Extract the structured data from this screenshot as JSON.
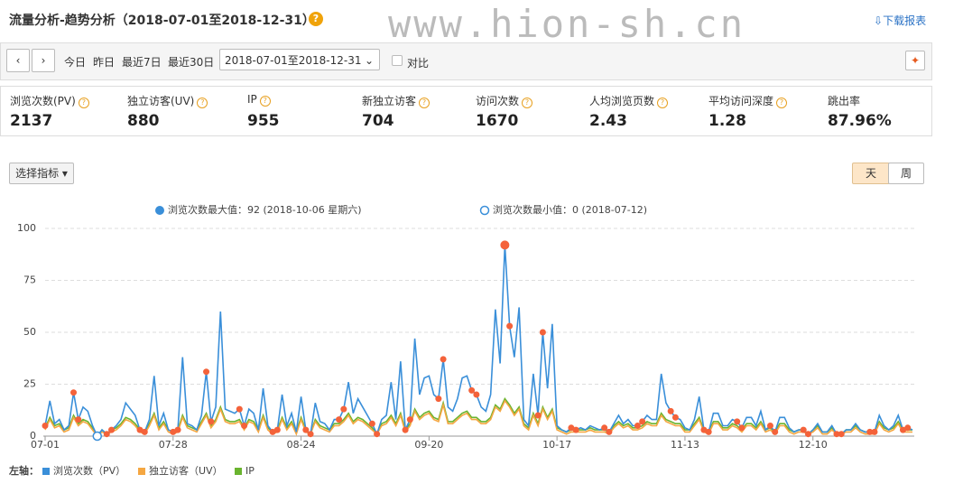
{
  "header": {
    "title": "流量分析-趋势分析（2018-07-01至2018-12-31）",
    "help": "?",
    "watermark": "www.hion-sh.cn",
    "download": "下载报表"
  },
  "toolbar": {
    "ranges": [
      "今日",
      "昨日",
      "最近7日",
      "最近30日"
    ],
    "date_range": "2018-07-01至2018-12-31",
    "compare": "对比"
  },
  "metrics": [
    {
      "label": "浏览次数(PV)",
      "value": 2137
    },
    {
      "label": "独立访客(UV)",
      "value": 880
    },
    {
      "label": "IP",
      "value": 955
    },
    {
      "label": "新独立访客",
      "value": 704
    },
    {
      "label": "访问次数",
      "value": 1670
    },
    {
      "label": "人均浏览页数",
      "value": 2.43
    },
    {
      "label": "平均访问深度",
      "value": 1.28
    },
    {
      "label": "跳出率",
      "value": "87.96%"
    }
  ],
  "controls": {
    "select": "选择指标",
    "day": "天",
    "week": "周"
  },
  "chart_data": {
    "type": "line",
    "annotations": {
      "max": "浏览次数最大值：92 (2018-10-06 星期六)",
      "min": "浏览次数最小值：0 (2018-07-12)"
    },
    "legend_title": "左轴：",
    "ylim": [
      0,
      100
    ],
    "yticks": [
      0,
      25,
      50,
      75,
      100
    ],
    "grid": true,
    "highlight_color": "#f4623a",
    "categories": [
      "07-01",
      null,
      null,
      null,
      null,
      null,
      null,
      null,
      null,
      null,
      null,
      null,
      null,
      null,
      null,
      null,
      null,
      null,
      null,
      null,
      null,
      null,
      null,
      null,
      null,
      null,
      null,
      "07-28",
      null,
      null,
      null,
      null,
      null,
      null,
      null,
      null,
      null,
      null,
      null,
      null,
      null,
      null,
      null,
      null,
      null,
      null,
      null,
      null,
      null,
      null,
      null,
      null,
      null,
      null,
      "08-24",
      null,
      null,
      null,
      null,
      null,
      null,
      null,
      null,
      null,
      null,
      null,
      null,
      null,
      null,
      null,
      null,
      null,
      null,
      null,
      null,
      null,
      null,
      null,
      null,
      null,
      null,
      "09-20",
      null,
      null,
      null,
      null,
      null,
      null,
      null,
      null,
      null,
      null,
      null,
      null,
      null,
      null,
      null,
      null,
      null,
      null,
      null,
      null,
      null,
      null,
      null,
      null,
      null,
      null,
      "10-17",
      null,
      null,
      null,
      null,
      null,
      null,
      null,
      null,
      null,
      null,
      null,
      null,
      null,
      null,
      null,
      null,
      null,
      null,
      null,
      null,
      null,
      null,
      null,
      null,
      null,
      null,
      "11-13",
      null,
      null,
      null,
      null,
      null,
      null,
      null,
      null,
      null,
      null,
      null,
      null,
      null,
      null,
      null,
      null,
      null,
      null,
      null,
      null,
      null,
      null,
      null,
      null,
      null,
      null,
      "12-10",
      null,
      null,
      null,
      null,
      null,
      null,
      null,
      null,
      null,
      null,
      null,
      null,
      null,
      null,
      null,
      null,
      null,
      null,
      null,
      null,
      null
    ],
    "series": [
      {
        "name": "浏览次数（PV）",
        "color": "#3a8fd9",
        "values": [
          5,
          17,
          6,
          8,
          3,
          5,
          21,
          8,
          14,
          12,
          5,
          0,
          3,
          1,
          3,
          5,
          8,
          16,
          13,
          10,
          3,
          2,
          8,
          29,
          5,
          11,
          3,
          2,
          3,
          38,
          6,
          5,
          3,
          10,
          31,
          7,
          14,
          60,
          13,
          12,
          11,
          13,
          5,
          13,
          11,
          3,
          23,
          5,
          2,
          3,
          20,
          5,
          11,
          2,
          19,
          3,
          1,
          16,
          7,
          6,
          3,
          8,
          8,
          13,
          26,
          11,
          18,
          14,
          10,
          6,
          1,
          8,
          10,
          26,
          8,
          36,
          3,
          8,
          47,
          20,
          28,
          29,
          20,
          18,
          37,
          14,
          12,
          18,
          28,
          29,
          22,
          20,
          14,
          12,
          20,
          61,
          35,
          92,
          53,
          38,
          62,
          8,
          5,
          30,
          10,
          50,
          23,
          54,
          5,
          3,
          2,
          4,
          3,
          4,
          3,
          5,
          4,
          3,
          4,
          2,
          6,
          10,
          6,
          8,
          5,
          5,
          7,
          10,
          8,
          8,
          30,
          16,
          12,
          9,
          8,
          4,
          3,
          8,
          19,
          3,
          2,
          11,
          11,
          5,
          5,
          8,
          7,
          4,
          9,
          9,
          5,
          12,
          3,
          5,
          2,
          9,
          9,
          4,
          2,
          3,
          3,
          1,
          3,
          6,
          2,
          2,
          5,
          1,
          1,
          3,
          3,
          6,
          3,
          2,
          2,
          2,
          10,
          5,
          3,
          5,
          10,
          3,
          4,
          3
        ]
      },
      {
        "name": "独立访客（UV）",
        "color": "#f5a742",
        "values": [
          3,
          8,
          4,
          5,
          2,
          3,
          9,
          5,
          7,
          6,
          3,
          0,
          2,
          1,
          2,
          3,
          5,
          8,
          7,
          5,
          2,
          1,
          5,
          10,
          3,
          6,
          2,
          1,
          2,
          9,
          4,
          3,
          2,
          6,
          10,
          4,
          7,
          13,
          7,
          6,
          6,
          7,
          3,
          7,
          6,
          2,
          9,
          3,
          1,
          2,
          8,
          3,
          6,
          1,
          8,
          2,
          1,
          7,
          4,
          3,
          2,
          5,
          5,
          7,
          10,
          6,
          8,
          7,
          5,
          3,
          1,
          5,
          6,
          9,
          5,
          10,
          2,
          5,
          12,
          8,
          10,
          11,
          8,
          7,
          15,
          6,
          6,
          8,
          10,
          11,
          8,
          8,
          6,
          6,
          8,
          14,
          12,
          17,
          14,
          10,
          13,
          5,
          3,
          10,
          5,
          13,
          8,
          12,
          3,
          2,
          1,
          2,
          2,
          2,
          2,
          3,
          2,
          2,
          2,
          1,
          4,
          6,
          4,
          5,
          3,
          3,
          4,
          6,
          5,
          5,
          10,
          7,
          6,
          5,
          5,
          2,
          2,
          5,
          8,
          2,
          1,
          6,
          6,
          3,
          3,
          5,
          4,
          2,
          5,
          5,
          3,
          6,
          2,
          3,
          1,
          5,
          5,
          2,
          1,
          2,
          2,
          1,
          2,
          4,
          1,
          1,
          3,
          1,
          1,
          2,
          2,
          4,
          2,
          1,
          1,
          1,
          6,
          3,
          2,
          3,
          6,
          2,
          2,
          2
        ]
      },
      {
        "name": "IP",
        "color": "#6ab42f",
        "values": [
          4,
          9,
          5,
          6,
          3,
          4,
          10,
          6,
          8,
          7,
          4,
          0,
          3,
          1,
          3,
          4,
          6,
          9,
          8,
          6,
          3,
          2,
          6,
          11,
          4,
          7,
          3,
          2,
          3,
          10,
          5,
          4,
          3,
          7,
          11,
          5,
          8,
          14,
          8,
          7,
          7,
          8,
          4,
          8,
          7,
          3,
          10,
          4,
          2,
          3,
          9,
          4,
          7,
          2,
          9,
          3,
          1,
          8,
          5,
          4,
          3,
          6,
          6,
          8,
          11,
          7,
          9,
          8,
          6,
          4,
          1,
          6,
          7,
          10,
          6,
          11,
          3,
          6,
          13,
          9,
          11,
          12,
          9,
          8,
          16,
          7,
          7,
          9,
          11,
          12,
          9,
          9,
          7,
          7,
          9,
          15,
          13,
          18,
          15,
          11,
          14,
          6,
          4,
          11,
          6,
          14,
          9,
          13,
          4,
          3,
          2,
          3,
          3,
          3,
          3,
          4,
          3,
          3,
          3,
          2,
          5,
          7,
          5,
          6,
          4,
          4,
          5,
          7,
          6,
          6,
          11,
          8,
          7,
          6,
          6,
          3,
          3,
          6,
          9,
          3,
          2,
          7,
          7,
          4,
          4,
          6,
          5,
          3,
          6,
          6,
          4,
          7,
          3,
          4,
          2,
          6,
          6,
          3,
          2,
          3,
          3,
          1,
          3,
          5,
          2,
          2,
          4,
          1,
          1,
          3,
          3,
          5,
          3,
          2,
          2,
          2,
          7,
          4,
          3,
          4,
          7,
          3,
          3,
          3
        ]
      }
    ]
  }
}
